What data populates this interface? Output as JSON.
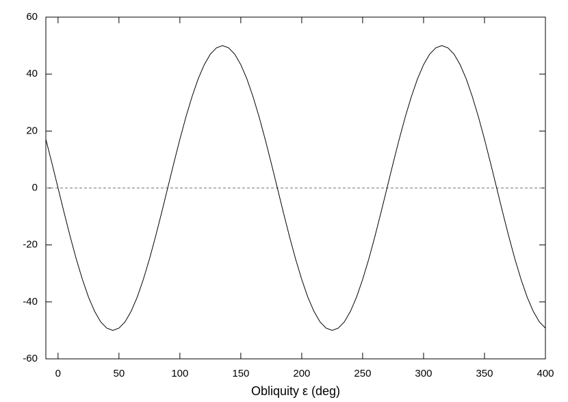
{
  "chart_data": {
    "type": "line",
    "xlabel": "Obliquity ε (deg)",
    "x": [
      -10,
      -5,
      0,
      5,
      10,
      15,
      20,
      25,
      30,
      35,
      40,
      45,
      50,
      55,
      60,
      65,
      70,
      75,
      80,
      85,
      90,
      95,
      100,
      105,
      110,
      115,
      120,
      125,
      130,
      135,
      140,
      145,
      150,
      155,
      160,
      165,
      170,
      175,
      180,
      185,
      190,
      195,
      200,
      205,
      210,
      215,
      220,
      225,
      230,
      235,
      240,
      245,
      250,
      255,
      260,
      265,
      270,
      275,
      280,
      285,
      290,
      295,
      300,
      305,
      310,
      315,
      320,
      325,
      330,
      335,
      340,
      345,
      350,
      355,
      360,
      365,
      370,
      375,
      380,
      385,
      390,
      395,
      400
    ],
    "series": [
      {
        "color": "#000000",
        "values": [
          17.1,
          8.7,
          0,
          -8.7,
          -17.1,
          -25,
          -32.1,
          -38.3,
          -43.3,
          -47,
          -49.2,
          -50,
          -49.2,
          -47,
          -43.3,
          -38.3,
          -32.1,
          -25,
          -17.1,
          -8.7,
          0,
          8.7,
          17.1,
          25,
          32.1,
          38.3,
          43.3,
          47,
          49.2,
          50,
          49.2,
          47,
          43.3,
          38.3,
          32.1,
          25,
          17.1,
          8.7,
          0,
          -8.7,
          -17.1,
          -25,
          -32.1,
          -38.3,
          -43.3,
          -47,
          -49.2,
          -50,
          -49.2,
          -47,
          -43.3,
          -38.3,
          -32.1,
          -25,
          -17.1,
          -8.7,
          0,
          8.7,
          17.1,
          25,
          32.1,
          38.3,
          43.3,
          47,
          49.2,
          50,
          49.2,
          47,
          43.3,
          38.3,
          32.1,
          25,
          17.1,
          8.7,
          0,
          -8.7,
          -17.1,
          -25,
          -32.1,
          -38.3,
          -43.3,
          -47,
          -49.2
        ]
      }
    ],
    "reference_line": 0,
    "xlim": [
      -10,
      400
    ],
    "xticks": [
      0,
      50,
      100,
      150,
      200,
      250,
      300,
      350,
      400
    ],
    "ylim": [
      -60,
      60
    ],
    "yticks": [
      -60,
      -40,
      -20,
      0,
      20,
      40,
      60
    ]
  }
}
